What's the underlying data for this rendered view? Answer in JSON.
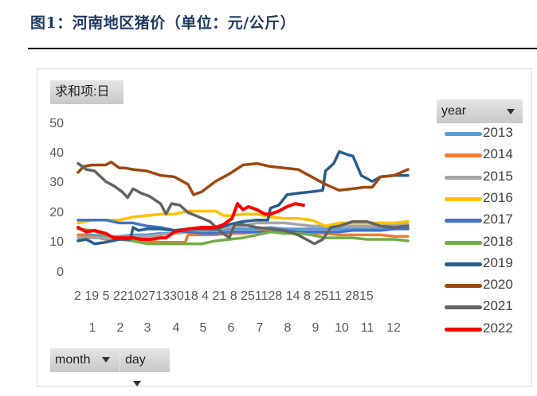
{
  "figure": {
    "title": "图1：河南地区猪价（单位：元/公斤）"
  },
  "pivot": {
    "value_field": "求和项:日",
    "legend_field": "year",
    "axis_fields": [
      "month",
      "day"
    ]
  },
  "axis": {
    "y_ticks": [
      "50",
      "40",
      "30",
      "20",
      "10",
      "0"
    ],
    "x_day_labels": "2 19 5 221027133018 4 21 8 251128 14 8 2511 2815",
    "x_month_labels": [
      "1",
      "2",
      "3",
      "4",
      "5",
      "6",
      "7",
      "8",
      "9",
      "10",
      "11",
      "12"
    ]
  },
  "legend": [
    {
      "label": "2013",
      "color": "#5b9bd5"
    },
    {
      "label": "2014",
      "color": "#ed7d31"
    },
    {
      "label": "2015",
      "color": "#a5a5a5"
    },
    {
      "label": "2016",
      "color": "#ffc000"
    },
    {
      "label": "2017",
      "color": "#4472c4"
    },
    {
      "label": "2018",
      "color": "#70ad47"
    },
    {
      "label": "2019",
      "color": "#255e91"
    },
    {
      "label": "2020",
      "color": "#9e480e"
    },
    {
      "label": "2021",
      "color": "#636363"
    },
    {
      "label": "2022",
      "color": "#ff0000"
    }
  ],
  "chart_data": {
    "type": "line",
    "title": "图1：河南地区猪价（单位：元/公斤）",
    "xlabel": "month / day",
    "ylabel": "求和项:日 (元/公斤)",
    "ylim": [
      0,
      50
    ],
    "yticks": [
      0,
      10,
      20,
      30,
      40,
      50
    ],
    "x_categories": [
      "1",
      "2",
      "3",
      "4",
      "5",
      "6",
      "7",
      "8",
      "9",
      "10",
      "11",
      "12"
    ],
    "x_unit": "month position (1.0 = start of Jan, 13.0 = end of Dec)",
    "grid": false,
    "legend_position": "right",
    "series": [
      {
        "name": "2013",
        "color": "#5b9bd5",
        "x": [
          1.0,
          1.5,
          2.0,
          2.5,
          3.0,
          3.5,
          4.0,
          4.5,
          5.0,
          5.5,
          6.0,
          6.5,
          7.0,
          7.5,
          8.0,
          8.5,
          9.0,
          9.5,
          10.0,
          10.5,
          11.0,
          11.5,
          12.0,
          12.5,
          13.0
        ],
        "y": [
          13,
          13,
          12.5,
          12.5,
          13,
          13,
          13.5,
          13.5,
          14,
          14,
          14.5,
          15,
          15,
          15,
          15.5,
          15,
          15,
          15,
          15,
          15,
          15,
          15,
          15.5,
          15.5,
          15.5
        ]
      },
      {
        "name": "2014",
        "color": "#ed7d31",
        "x": [
          1.0,
          1.5,
          2.0,
          2.5,
          3.0,
          3.5,
          4.0,
          4.5,
          4.9,
          5.0,
          5.5,
          6.0,
          6.5,
          7.0,
          7.5,
          8.0,
          8.5,
          9.0,
          9.5,
          10.0,
          10.5,
          11.0,
          11.5,
          12.0,
          12.5,
          13.0
        ],
        "y": [
          13,
          12.5,
          11.5,
          11.5,
          11,
          11,
          10.5,
          10.5,
          10.5,
          13,
          13,
          13,
          13.5,
          13.5,
          14,
          14.5,
          14,
          14,
          13.5,
          13.5,
          13,
          13,
          13,
          13,
          12.5,
          12.5
        ]
      },
      {
        "name": "2015",
        "color": "#a5a5a5",
        "x": [
          1.0,
          1.5,
          2.0,
          2.5,
          3.0,
          3.5,
          4.0,
          4.5,
          5.0,
          5.5,
          6.0,
          6.5,
          7.0,
          7.5,
          8.0,
          8.5,
          9.0,
          9.5,
          10.0,
          10.5,
          11.0,
          11.5,
          12.0,
          12.5,
          13.0
        ],
        "y": [
          12,
          12,
          12,
          12,
          12.5,
          12.5,
          13,
          13.5,
          14,
          14.5,
          15,
          15.5,
          16,
          17,
          17,
          17,
          16.5,
          16,
          16,
          16,
          16,
          16,
          16,
          16.5,
          16.5
        ]
      },
      {
        "name": "2016",
        "color": "#ffc000",
        "x": [
          1.0,
          1.5,
          2.0,
          2.5,
          3.0,
          3.5,
          4.0,
          4.5,
          5.0,
          5.5,
          6.0,
          6.3,
          6.6,
          7.0,
          7.5,
          8.0,
          8.5,
          9.0,
          9.5,
          10.0,
          10.5,
          11.0,
          11.5,
          12.0,
          12.5,
          13.0
        ],
        "y": [
          17,
          18,
          18,
          18,
          19,
          19.5,
          20,
          20,
          21,
          21,
          21,
          19.5,
          19.5,
          20,
          20,
          19,
          18.5,
          18.5,
          18,
          16,
          17,
          17,
          17,
          17,
          17,
          17.5
        ]
      },
      {
        "name": "2017",
        "color": "#4472c4",
        "x": [
          1.0,
          1.5,
          2.0,
          2.5,
          3.0,
          3.5,
          4.0,
          4.5,
          5.0,
          5.5,
          6.0,
          6.5,
          7.0,
          7.5,
          8.0,
          8.5,
          9.0,
          9.5,
          10.0,
          10.5,
          11.0,
          11.5,
          12.0,
          12.5,
          13.0
        ],
        "y": [
          18,
          18,
          18,
          17,
          17,
          16,
          15.5,
          14.5,
          14,
          13.5,
          13.5,
          14,
          14,
          14,
          14,
          14.5,
          14,
          14,
          14,
          14,
          14.5,
          14.5,
          14.5,
          15,
          15
        ]
      },
      {
        "name": "2018",
        "color": "#70ad47",
        "x": [
          1.0,
          1.5,
          2.0,
          2.5,
          3.0,
          3.5,
          4.0,
          4.5,
          5.0,
          5.5,
          6.0,
          6.5,
          7.0,
          7.5,
          8.0,
          8.5,
          9.0,
          9.5,
          10.0,
          10.5,
          11.0,
          11.5,
          12.0,
          12.5,
          13.0
        ],
        "y": [
          15,
          14.5,
          13,
          12,
          11,
          10,
          10,
          10,
          10,
          10,
          11,
          11.5,
          12,
          13,
          14,
          13.5,
          13.5,
          13,
          12,
          12,
          12,
          11.5,
          11.5,
          11.5,
          11
        ]
      },
      {
        "name": "2019",
        "color": "#255e91",
        "x": [
          1.0,
          1.3,
          1.6,
          2.0,
          2.5,
          2.9,
          3.0,
          3.2,
          3.5,
          4.0,
          4.5,
          5.0,
          5.5,
          6.0,
          6.5,
          7.0,
          7.5,
          7.9,
          8.0,
          8.3,
          8.6,
          9.0,
          9.5,
          9.9,
          10.0,
          10.3,
          10.5,
          10.8,
          11.0,
          11.3,
          11.7,
          12.0,
          12.5,
          13.0
        ],
        "y": [
          11,
          11.5,
          10,
          10.5,
          11.5,
          11.5,
          15.5,
          14.5,
          15,
          15,
          14.5,
          15,
          15,
          15,
          16.5,
          17.5,
          18,
          18,
          22,
          23,
          26.5,
          27,
          27.5,
          28,
          34.5,
          37,
          41,
          40,
          39.5,
          33,
          31,
          32.5,
          33,
          33
        ]
      },
      {
        "name": "2020",
        "color": "#9e480e",
        "x": [
          1.0,
          1.2,
          1.5,
          2.0,
          2.2,
          2.5,
          2.7,
          3.0,
          3.5,
          4.0,
          4.5,
          5.0,
          5.2,
          5.5,
          6.0,
          6.5,
          7.0,
          7.5,
          8.0,
          8.5,
          9.0,
          9.5,
          10.0,
          10.5,
          11.0,
          11.4,
          11.7,
          12.0,
          12.5,
          13.0
        ],
        "y": [
          34,
          36,
          36.5,
          36.5,
          37.5,
          35.5,
          35.5,
          35,
          34.5,
          33,
          32.5,
          30,
          26.5,
          27.5,
          31,
          33.5,
          36.5,
          37,
          36,
          35.5,
          35,
          32.5,
          30,
          28,
          28.5,
          29,
          29,
          32.5,
          33,
          35
        ]
      },
      {
        "name": "2021",
        "color": "#636363",
        "x": [
          1.0,
          1.3,
          1.6,
          2.0,
          2.3,
          2.6,
          2.8,
          3.0,
          3.3,
          3.6,
          4.0,
          4.2,
          4.4,
          4.7,
          5.0,
          5.4,
          5.8,
          6.2,
          6.5,
          6.7,
          7.0,
          7.5,
          8.0,
          8.5,
          9.0,
          9.3,
          9.6,
          9.9,
          10.2,
          10.5,
          11.0,
          11.5,
          12.0,
          12.5,
          13.0
        ],
        "y": [
          37,
          35,
          34.5,
          31,
          29.5,
          27.5,
          25.5,
          28.5,
          27,
          26,
          23.5,
          20,
          23.5,
          23,
          20.5,
          19,
          17.5,
          14,
          12,
          16.5,
          16.5,
          15.5,
          15,
          14.5,
          13,
          11.5,
          10,
          11.5,
          15.5,
          16,
          17.5,
          17.5,
          16,
          15.5,
          16
        ]
      },
      {
        "name": "2022",
        "color": "#ff0000",
        "x": [
          1.0,
          1.3,
          1.6,
          2.0,
          2.3,
          2.6,
          3.0,
          3.3,
          3.6,
          4.0,
          4.2,
          4.5,
          5.0,
          5.5,
          6.0,
          6.3,
          6.6,
          6.8,
          7.0,
          7.2,
          7.5,
          7.8,
          8.0,
          8.3,
          8.6,
          8.9,
          9.2
        ],
        "y": [
          15.5,
          14,
          14.5,
          13.5,
          12,
          12,
          12,
          11.5,
          11.5,
          12,
          12,
          14,
          15,
          15.5,
          15.5,
          16.5,
          18.5,
          23.5,
          21.5,
          22.5,
          21.5,
          20,
          20,
          21,
          22.5,
          23.5,
          23
        ]
      }
    ]
  }
}
